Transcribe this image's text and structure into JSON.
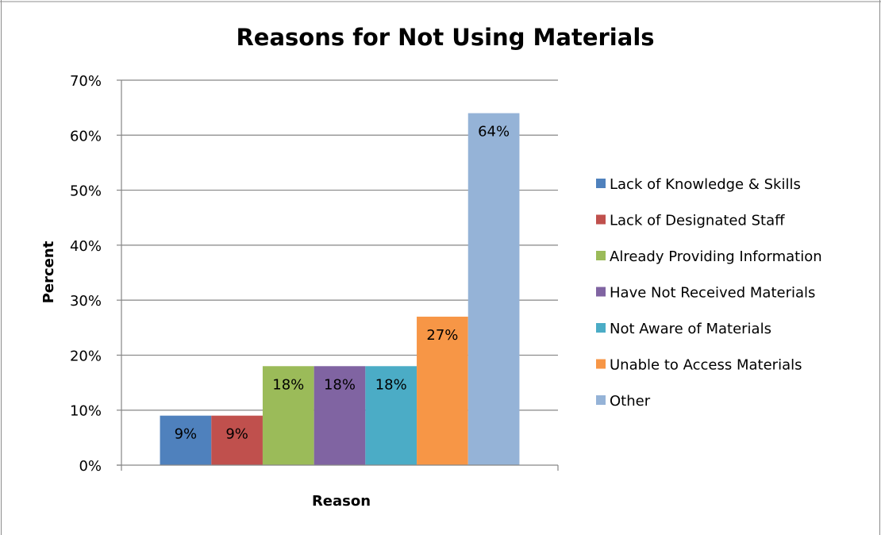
{
  "chart_data": {
    "type": "bar",
    "title": "Reasons for Not Using Materials",
    "xlabel": "Reason",
    "ylabel": "Percent",
    "ylim": [
      0,
      70
    ],
    "y_ticks": [
      0,
      10,
      20,
      30,
      40,
      50,
      60,
      70
    ],
    "y_tick_format": "percent",
    "grid": true,
    "legend_position": "right",
    "series": [
      {
        "name": "Lack of Knowledge & Skills",
        "value": 9,
        "label": "9%",
        "color": "#4F81BD"
      },
      {
        "name": "Lack of Designated Staff",
        "value": 9,
        "label": "9%",
        "color": "#C0504D"
      },
      {
        "name": "Already Providing Information",
        "value": 18,
        "label": "18%",
        "color": "#9BBB59"
      },
      {
        "name": "Have Not Received Materials",
        "value": 18,
        "label": "18%",
        "color": "#8064A2"
      },
      {
        "name": "Not Aware of Materials",
        "value": 18,
        "label": "18%",
        "color": "#4BACC6"
      },
      {
        "name": "Unable to Access Materials",
        "value": 27,
        "label": "27%",
        "color": "#F79646"
      },
      {
        "name": "Other",
        "value": 64,
        "label": "64%",
        "color": "#95B3D7"
      }
    ]
  }
}
